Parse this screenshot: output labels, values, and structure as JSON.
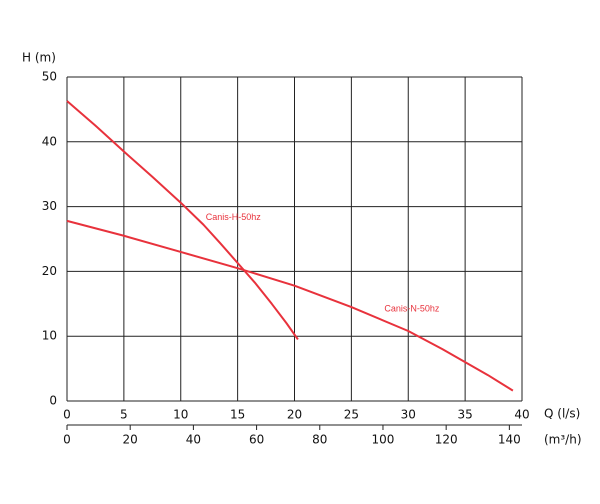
{
  "chart_data": {
    "type": "line",
    "y_label": "H (m)",
    "x_label": "Q (l/s)",
    "x2_label": "(m³/h)",
    "xlim": [
      0,
      40
    ],
    "xticks": [
      0,
      5,
      10,
      15,
      20,
      25,
      30,
      35,
      40
    ],
    "ylim": [
      0,
      50
    ],
    "yticks": [
      0,
      10,
      20,
      30,
      40,
      50
    ],
    "x2lim": [
      0,
      144
    ],
    "x2ticks": [
      0,
      20,
      40,
      60,
      80,
      100,
      120,
      140
    ],
    "grid": true,
    "series": [
      {
        "name": "Canis-H-50hz",
        "color": "#e8323c",
        "x": [
          0,
          2.5,
          5,
          7.5,
          10,
          12,
          13.5,
          15,
          16.5,
          18,
          19.3,
          20.3
        ],
        "values": [
          46.3,
          42.5,
          38.5,
          34.6,
          30.6,
          27.2,
          24.3,
          21.3,
          18.3,
          15,
          12,
          9.5
        ]
      },
      {
        "name": "Canis-N-50hz",
        "color": "#e8323c",
        "x": [
          0,
          5,
          10,
          15,
          20,
          25,
          30,
          33,
          35,
          37,
          39.2
        ],
        "values": [
          27.8,
          25.5,
          23,
          20.5,
          17.8,
          14.5,
          10.8,
          8,
          6,
          4,
          1.6
        ]
      }
    ]
  }
}
